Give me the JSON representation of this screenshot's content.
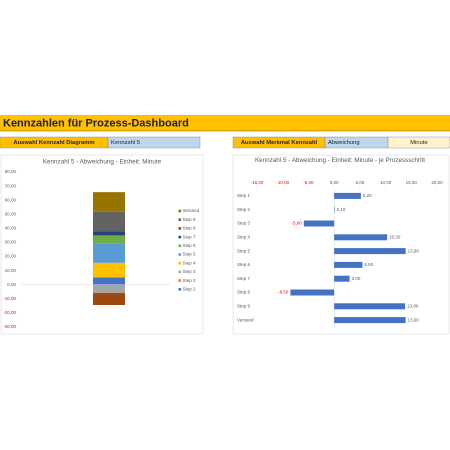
{
  "dashboard": {
    "title": "Kennzahlen für Prozess-Dashboard",
    "left_selector": {
      "label": "Auswahl Kennzahl Diagramm",
      "value": "Kennzahl 5"
    },
    "right_selector": {
      "label": "Auswahl Merkmal Kennzahl",
      "value": "Abweichung",
      "unit": "Minute"
    }
  },
  "chart_data": [
    {
      "type": "stacked_bar",
      "title": "Kennzahl 5 - Abweichung - Einheit: Minute",
      "categories": [
        null
      ],
      "negative_color": "#ff0000",
      "legend": "right",
      "ylim": [
        -30,
        80
      ],
      "yticks": [
        {
          "value": -30,
          "label": "-30,00"
        },
        {
          "value": -20,
          "label": "-20,00"
        },
        {
          "value": -10,
          "label": "-10,00"
        },
        {
          "value": 0,
          "label": "0,00"
        },
        {
          "value": 10,
          "label": "10,00"
        },
        {
          "value": 20,
          "label": "20,00"
        },
        {
          "value": 30,
          "label": "30,00"
        },
        {
          "value": 40,
          "label": "40,00"
        },
        {
          "value": 50,
          "label": "50,00"
        },
        {
          "value": 60,
          "label": "60,00"
        },
        {
          "value": 70,
          "label": "70,00"
        },
        {
          "value": 80,
          "label": "80,00"
        }
      ],
      "series": [
        {
          "name": "Step 1",
          "color": "#4472c4",
          "values": [
            5.2
          ]
        },
        {
          "name": "Step 2",
          "color": "#ed7d31",
          "values": [
            0.1
          ]
        },
        {
          "name": "Step 3",
          "color": "#a5a5a5",
          "values": [
            -5.9
          ]
        },
        {
          "name": "Step 4",
          "color": "#ffc000",
          "values": [
            10.3
          ]
        },
        {
          "name": "Step 5",
          "color": "#5b9bd5",
          "values": [
            13.9
          ]
        },
        {
          "name": "Step 6",
          "color": "#70ad47",
          "values": [
            5.5
          ]
        },
        {
          "name": "Step 7",
          "color": "#264478",
          "values": [
            3.0
          ]
        },
        {
          "name": "Step 8",
          "color": "#9e480e",
          "values": [
            -8.5
          ]
        },
        {
          "name": "Step 9",
          "color": "#636363",
          "values": [
            13.8
          ]
        },
        {
          "name": "Versand",
          "color": "#997300",
          "values": [
            13.9
          ]
        }
      ]
    },
    {
      "type": "hbar",
      "title": "Kennzahl 5 - Abweichung - Einheit: Minute - je Prozessschritt",
      "color": "#4472c4",
      "negative_color": "#ff0000",
      "categories": [
        "Step 1",
        "Step 2",
        "Step 3",
        "Step 4",
        "Step 5",
        "Step 6",
        "Step 7",
        "Step 8",
        "Step 9",
        "Versand"
      ],
      "values": [
        5.2,
        0.1,
        -5.9,
        10.3,
        13.9,
        5.5,
        3.0,
        -8.5,
        13.8,
        13.9
      ],
      "value_labels": [
        "5,20",
        "0,10",
        "-5,90",
        "10,30",
        "13,90",
        "5,50",
        "3,00",
        "-8,50",
        "13,80",
        "13,90"
      ],
      "xlim": [
        -15,
        20
      ],
      "xticks": [
        {
          "value": -15,
          "label": "-15,00"
        },
        {
          "value": -10,
          "label": "-10,00"
        },
        {
          "value": -5,
          "label": "-5,00"
        },
        {
          "value": 0,
          "label": "0,00"
        },
        {
          "value": 5,
          "label": "5,00"
        },
        {
          "value": 10,
          "label": "10,00"
        },
        {
          "value": 15,
          "label": "15,00"
        },
        {
          "value": 20,
          "label": "20,00"
        }
      ]
    }
  ]
}
